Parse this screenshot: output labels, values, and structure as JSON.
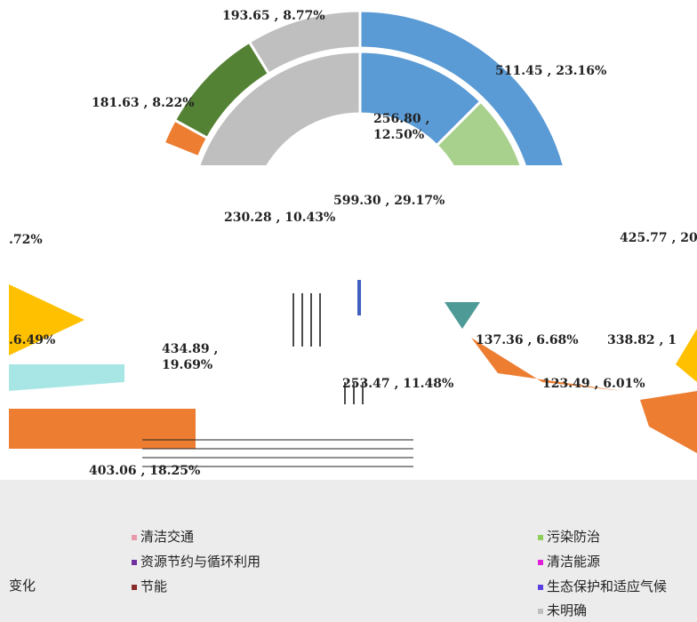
{
  "chart_data": {
    "type": "doughnut",
    "outer": [
      {
        "value": 511.45,
        "percent": 23.16,
        "value_label": "511.45 , 23.16%",
        "color": "#5b9bd5"
      },
      {
        "value": 181.63,
        "percent": 8.22,
        "value_label": "181.63 , 8.22%",
        "color": "#548235"
      },
      {
        "value": 193.65,
        "percent": 8.77,
        "value_label": "193.65 , 8.77%",
        "color": "#bfbfbf"
      }
    ],
    "inner": [
      {
        "value": 256.8,
        "percent": 12.5,
        "value_label": "256.80 ,\n12.50%",
        "color": "#5b9bd5"
      },
      {
        "value": 599.3,
        "percent": 29.17,
        "value_label": "599.30 , 29.17%",
        "color": "#bfbfbf"
      }
    ],
    "annotations": [
      "230.28 , 10.43%",
      "425.77 , 20",
      ".72%",
      ".6.49%",
      "434.89 ,\n19.69%",
      "253.47 , 11.48%",
      "137.36 , 6.68%",
      "123.49 , 6.01%",
      "338.82 , 1",
      "403.06 , 18.25%",
      "变化"
    ],
    "legend": [
      {
        "name": "清洁交通",
        "color": "#e99aa8"
      },
      {
        "name": "污染防治",
        "color": "#8fce5a"
      },
      {
        "name": "资源节约与循环利用",
        "color": "#7030a0"
      },
      {
        "name": "清洁能源",
        "color": "#e020d8"
      },
      {
        "name": "节能",
        "color": "#8b2c2c"
      },
      {
        "name": "生态保护和适应气候",
        "color": "#5a3fe0"
      },
      {
        "name": "未明确",
        "color": "#bfbfbf"
      }
    ]
  }
}
